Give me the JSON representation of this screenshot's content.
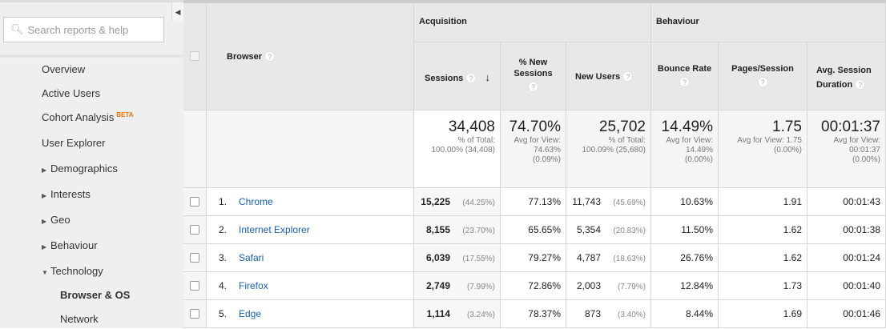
{
  "sidebar": {
    "search_placeholder": "Search reports & help",
    "items": [
      {
        "label": "Overview"
      },
      {
        "label": "Active Users"
      },
      {
        "label": "Cohort Analysis",
        "badge": "BETA"
      },
      {
        "label": "User Explorer"
      },
      {
        "label": "Demographics"
      },
      {
        "label": "Interests"
      },
      {
        "label": "Geo"
      },
      {
        "label": "Behaviour"
      },
      {
        "label": "Technology"
      },
      {
        "label": "Browser & OS"
      },
      {
        "label": "Network"
      }
    ]
  },
  "table": {
    "groups": {
      "acquisition": "Acquisition",
      "behaviour": "Behaviour"
    },
    "headers": {
      "browser": "Browser",
      "sessions": "Sessions",
      "pct_new_sessions": "% New Sessions",
      "new_users": "New Users",
      "bounce_rate": "Bounce Rate",
      "pages_session": "Pages/Session",
      "avg_duration": "Avg. Session Duration"
    },
    "summary": {
      "sessions": {
        "value": "34,408",
        "l1": "% of Total:",
        "l2": "100.00% (34,408)"
      },
      "pct_new": {
        "value": "74.70%",
        "l1": "Avg for View:",
        "l2": "74.63%",
        "l3": "(0.09%)"
      },
      "new_users": {
        "value": "25,702",
        "l1": "% of Total:",
        "l2": "100.09% (25,680)"
      },
      "bounce": {
        "value": "14.49%",
        "l1": "Avg for View:",
        "l2": "14.49%",
        "l3": "(0.00%)"
      },
      "pages": {
        "value": "1.75",
        "l1": "Avg for View: 1.75",
        "l2": "(0.00%)"
      },
      "duration": {
        "value": "00:01:37",
        "l1": "Avg for View:",
        "l2": "00:01:37",
        "l3": "(0.00%)"
      }
    },
    "rows": [
      {
        "n": "1.",
        "browser": "Chrome",
        "sessions": "15,225",
        "sessions_pct": "(44.25%)",
        "pct_new": "77.13%",
        "new_users": "11,743",
        "new_users_pct": "(45.69%)",
        "bounce": "10.63%",
        "pages": "1.91",
        "duration": "00:01:43"
      },
      {
        "n": "2.",
        "browser": "Internet Explorer",
        "sessions": "8,155",
        "sessions_pct": "(23.70%)",
        "pct_new": "65.65%",
        "new_users": "5,354",
        "new_users_pct": "(20.83%)",
        "bounce": "11.50%",
        "pages": "1.62",
        "duration": "00:01:38"
      },
      {
        "n": "3.",
        "browser": "Safari",
        "sessions": "6,039",
        "sessions_pct": "(17.55%)",
        "pct_new": "79.27%",
        "new_users": "4,787",
        "new_users_pct": "(18.63%)",
        "bounce": "26.76%",
        "pages": "1.62",
        "duration": "00:01:24"
      },
      {
        "n": "4.",
        "browser": "Firefox",
        "sessions": "2,749",
        "sessions_pct": "(7.99%)",
        "pct_new": "72.86%",
        "new_users": "2,003",
        "new_users_pct": "(7.79%)",
        "bounce": "12.84%",
        "pages": "1.73",
        "duration": "00:01:40"
      },
      {
        "n": "5.",
        "browser": "Edge",
        "sessions": "1,114",
        "sessions_pct": "(3.24%)",
        "pct_new": "78.37%",
        "new_users": "873",
        "new_users_pct": "(3.40%)",
        "bounce": "8.44%",
        "pages": "1.69",
        "duration": "00:01:46"
      }
    ]
  }
}
